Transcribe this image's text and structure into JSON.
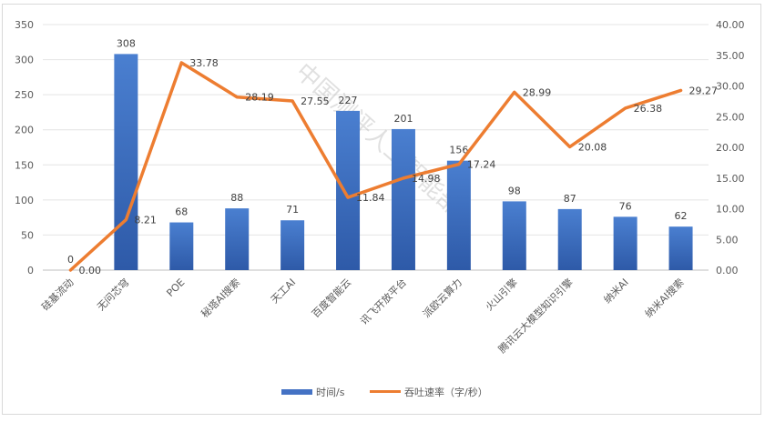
{
  "chart_data": {
    "type": "bar+line",
    "categories": [
      "硅基流动",
      "无问芯穹",
      "POE",
      "秘塔AI搜索",
      "天工AI",
      "百度智能云",
      "讯飞开放平台",
      "派欧云算力",
      "火山引擎",
      "腾讯云大模型知识引擎",
      "纳米AI",
      "纳米AI搜索"
    ],
    "series": [
      {
        "name": "时间/s",
        "type": "bar",
        "axis": "left",
        "color": "#4472c4",
        "values": [
          0,
          308,
          68,
          88,
          71,
          227,
          201,
          156,
          98,
          87,
          76,
          62
        ],
        "labels": [
          "0",
          "308",
          "68",
          "88",
          "71",
          "227",
          "201",
          "156",
          "98",
          "87",
          "76",
          "62"
        ]
      },
      {
        "name": "吞吐速率（字/秒）",
        "type": "line",
        "axis": "right",
        "color": "#ed7d31",
        "values": [
          0.0,
          8.21,
          33.78,
          28.19,
          27.55,
          11.84,
          14.98,
          17.24,
          28.99,
          20.08,
          26.38,
          29.27
        ],
        "labels": [
          "0.00",
          "8.21",
          "33.78",
          "28.19",
          "27.55",
          "11.84",
          "14.98",
          "17.24",
          "28.99",
          "20.08",
          "26.38",
          "29.27"
        ]
      }
    ],
    "y_left": {
      "ylim": [
        0,
        350
      ],
      "ticks": [
        "0",
        "50",
        "100",
        "150",
        "200",
        "250",
        "300",
        "350"
      ]
    },
    "y_right": {
      "ylim": [
        0,
        40
      ],
      "ticks": [
        "0.00",
        "5.00",
        "10.00",
        "15.00",
        "20.00",
        "25.00",
        "30.00",
        "35.00",
        "40.00"
      ]
    },
    "grid": true,
    "legend_position": "bottom-center",
    "watermark": "中国测评人工智能部"
  }
}
